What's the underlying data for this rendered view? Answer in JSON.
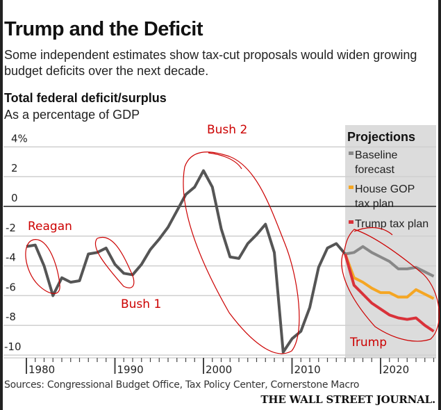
{
  "header": {
    "title": "Trump and the Deficit",
    "subtitle": "Some independent estimates show tax-cut proposals would widen growing budget deficits over the next decade."
  },
  "chart_data": {
    "type": "line",
    "title": "Total federal deficit/surplus",
    "subtitle": "As a percentage of GDP",
    "ylim": [
      -10,
      4
    ],
    "xlim": [
      1980,
      2026
    ],
    "yticks": [
      "4%",
      "2",
      "0",
      "-2",
      "-4",
      "-6",
      "-8",
      "-10"
    ],
    "ytick_values": [
      4,
      2,
      0,
      -2,
      -4,
      -6,
      -8,
      -10
    ],
    "xticks": [
      "1980",
      "1990",
      "2000",
      "2010",
      "2020"
    ],
    "xtick_values": [
      1980,
      1990,
      2000,
      2010,
      2020
    ],
    "grid": true,
    "projection_start": 2016,
    "legend_title": "Projections",
    "legend_placement": "top-right",
    "history": {
      "color": "#555555",
      "x": [
        1980,
        1981,
        1982,
        1983,
        1984,
        1985,
        1986,
        1987,
        1988,
        1989,
        1990,
        1991,
        1992,
        1993,
        1994,
        1995,
        1996,
        1997,
        1998,
        1999,
        2000,
        2001,
        2002,
        2003,
        2004,
        2005,
        2006,
        2007,
        2008,
        2009,
        2010,
        2011,
        2012,
        2013,
        2014,
        2015,
        2016
      ],
      "y": [
        -2.7,
        -2.6,
        -4.0,
        -6.0,
        -4.8,
        -5.1,
        -5.0,
        -3.2,
        -3.1,
        -2.8,
        -3.9,
        -4.5,
        -4.6,
        -3.9,
        -2.9,
        -2.2,
        -1.4,
        -0.3,
        0.8,
        1.3,
        2.4,
        1.3,
        -1.5,
        -3.4,
        -3.5,
        -2.5,
        -1.9,
        -1.2,
        -3.1,
        -9.8,
        -8.9,
        -8.4,
        -6.8,
        -4.1,
        -2.8,
        -2.5,
        -3.2
      ]
    },
    "series": [
      {
        "name": "Baseline forecast",
        "color": "#888888",
        "x": [
          2016,
          2017,
          2018,
          2019,
          2020,
          2021,
          2022,
          2023,
          2024,
          2025,
          2026
        ],
        "y": [
          -3.2,
          -3.1,
          -2.7,
          -3.1,
          -3.4,
          -3.7,
          -4.2,
          -4.2,
          -4.1,
          -4.4,
          -4.7
        ]
      },
      {
        "name": "House GOP tax plan",
        "color": "#f5a623",
        "x": [
          2016,
          2017,
          2018,
          2019,
          2020,
          2021,
          2022,
          2023,
          2024,
          2025,
          2026
        ],
        "y": [
          -3.2,
          -4.8,
          -5.1,
          -5.5,
          -5.8,
          -5.8,
          -6.1,
          -6.1,
          -5.6,
          -5.9,
          -6.2
        ]
      },
      {
        "name": "Trump tax plan",
        "color": "#d9323a",
        "x": [
          2016,
          2017,
          2018,
          2019,
          2020,
          2021,
          2022,
          2023,
          2024,
          2025,
          2026
        ],
        "y": [
          -3.2,
          -5.3,
          -5.9,
          -6.5,
          -6.9,
          -7.3,
          -7.5,
          -7.6,
          -7.5,
          -8.0,
          -8.4
        ]
      }
    ],
    "annotations": [
      "Reagan",
      "Bush 1",
      "Bush 2",
      "Trump"
    ],
    "annotation_color": "#cc0000"
  },
  "footer": {
    "source": "Sources: Congressional Budget Office, Tax Policy Center, Cornerstone Macro",
    "brand": "THE WALL STREET JOURNAL."
  }
}
